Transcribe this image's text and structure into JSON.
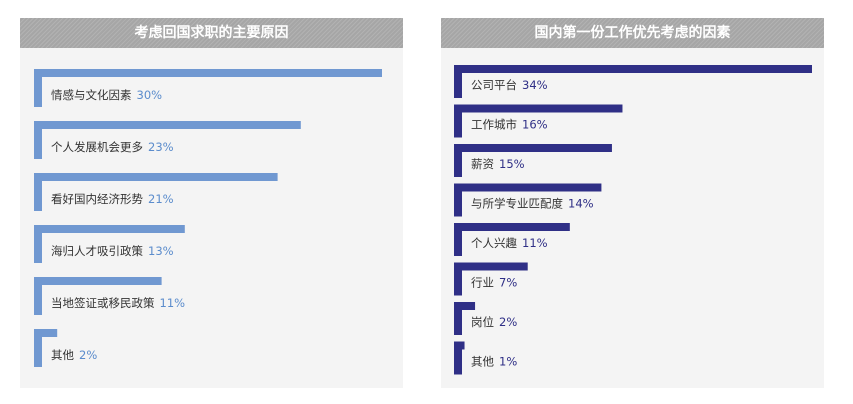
{
  "colors": {
    "left_bar": "#7098d1",
    "left_value": "#5b8ccc",
    "right_bar": "#2f2f86",
    "right_value": "#2f2f86"
  },
  "chart_data": [
    {
      "type": "bar",
      "orientation": "horizontal",
      "title": "考虑回国求职的主要原因",
      "categories": [
        "情感与文化因素",
        "个人发展机会更多",
        "看好国内经济形势",
        "海归人才吸引政策",
        "当地签证或移民政策",
        "其他"
      ],
      "values": [
        30,
        23,
        21,
        13,
        11,
        2
      ],
      "value_labels": [
        "30%",
        "23%",
        "21%",
        "13%",
        "11%",
        "2%"
      ],
      "unit": "%",
      "xlim": [
        0,
        30
      ]
    },
    {
      "type": "bar",
      "orientation": "horizontal",
      "title": "国内第一份工作优先考虑的因素",
      "categories": [
        "公司平台",
        "工作城市",
        "薪资",
        "与所学专业匹配度",
        "个人兴趣",
        "行业",
        "岗位",
        "其他"
      ],
      "values": [
        34,
        16,
        15,
        14,
        11,
        7,
        2,
        1
      ],
      "value_labels": [
        "34%",
        "16%",
        "15%",
        "14%",
        "11%",
        "7%",
        "2%",
        "1%"
      ],
      "unit": "%",
      "xlim": [
        0,
        34
      ]
    }
  ]
}
